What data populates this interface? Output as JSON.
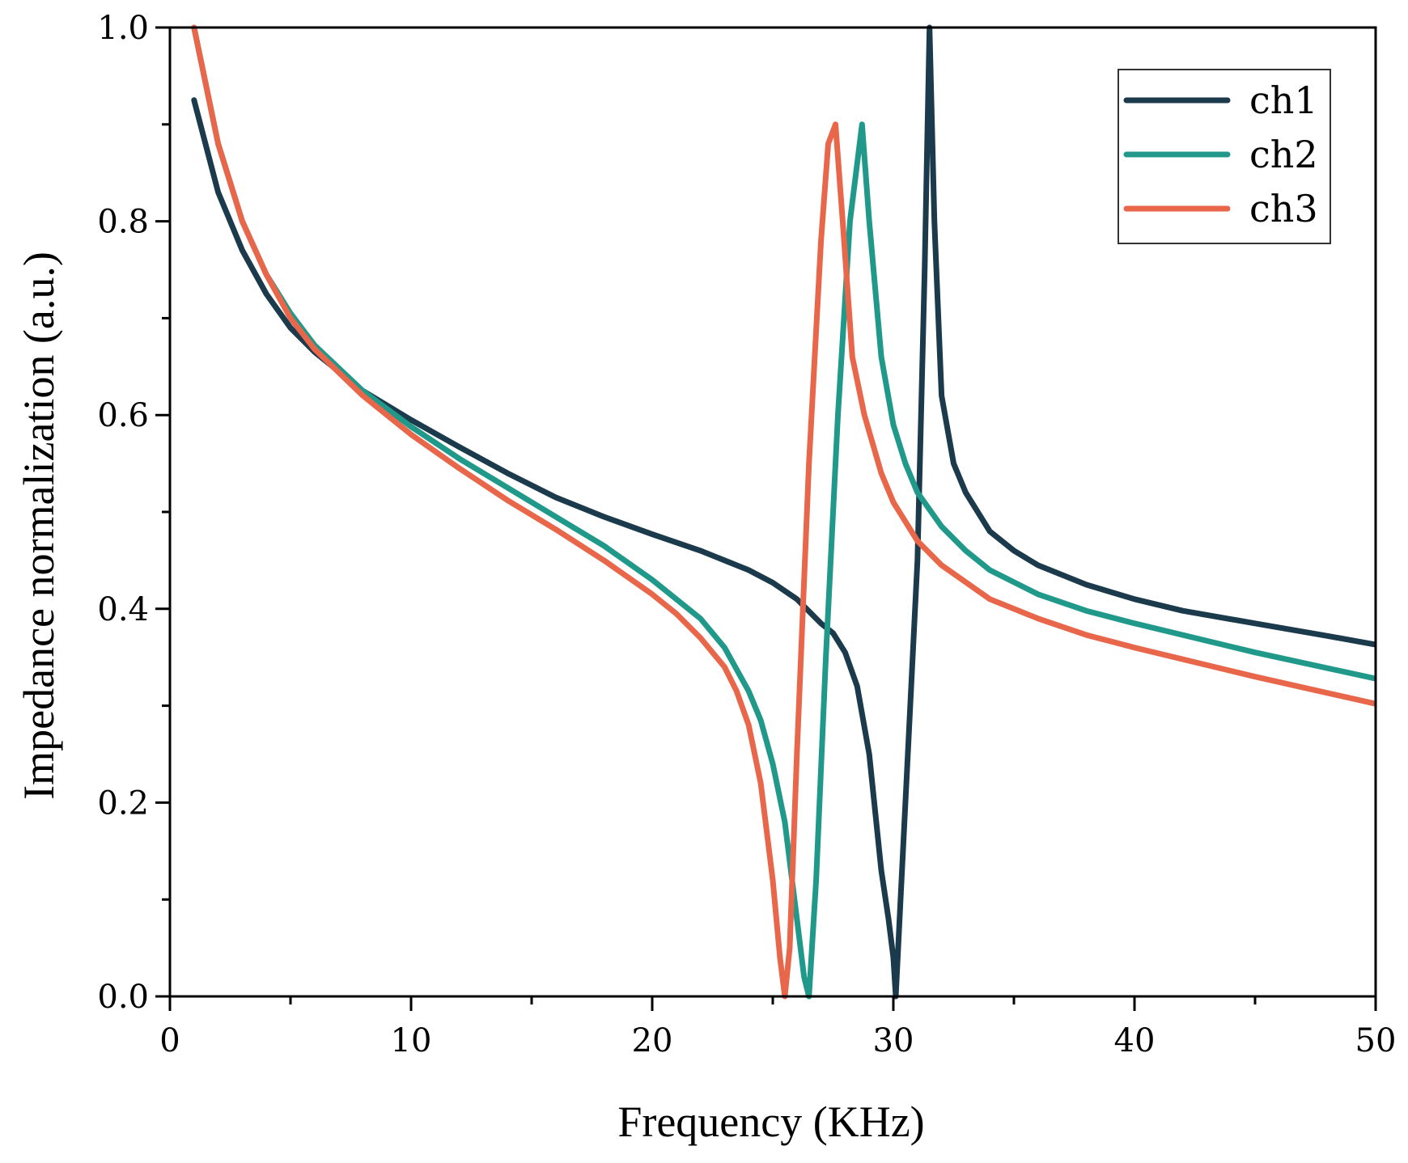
{
  "chart_data": {
    "type": "line",
    "title": "",
    "xlabel": "Frequency (KHz)",
    "ylabel": "Impedance normalization (a.u.)",
    "xlim": [
      0,
      50
    ],
    "ylim": [
      0,
      1.0
    ],
    "xticks": [
      0,
      10,
      20,
      30,
      40,
      50
    ],
    "xtick_labels": [
      "0",
      "10",
      "20",
      "30",
      "40",
      "50"
    ],
    "yticks": [
      0,
      0.2,
      0.4,
      0.6,
      0.8,
      1.0
    ],
    "ytick_labels": [
      "0.0",
      "0.2",
      "0.4",
      "0.6",
      "0.8",
      "1.0"
    ],
    "grid": false,
    "legend_position": "top-right",
    "series": [
      {
        "name": "ch1",
        "color": "#1b3a4b",
        "x": [
          1,
          2,
          3,
          4,
          5,
          6,
          8,
          10,
          12,
          14,
          16,
          18,
          20,
          22,
          24,
          25,
          26,
          27,
          27.5,
          28,
          28.5,
          29,
          29.5,
          29.8,
          30,
          30.1,
          30.3,
          30.6,
          31,
          31.3,
          31.5,
          31.7,
          32,
          32.5,
          33,
          34,
          35,
          36,
          38,
          40,
          42,
          45,
          48,
          50
        ],
        "y": [
          0.925,
          0.83,
          0.77,
          0.725,
          0.69,
          0.665,
          0.625,
          0.595,
          0.567,
          0.54,
          0.515,
          0.495,
          0.477,
          0.46,
          0.44,
          0.427,
          0.41,
          0.385,
          0.375,
          0.355,
          0.32,
          0.25,
          0.13,
          0.08,
          0.04,
          0.0,
          0.1,
          0.25,
          0.45,
          0.75,
          1.0,
          0.8,
          0.62,
          0.55,
          0.52,
          0.48,
          0.46,
          0.445,
          0.425,
          0.41,
          0.398,
          0.385,
          0.372,
          0.363
        ]
      },
      {
        "name": "ch2",
        "color": "#21998a",
        "x": [
          1,
          2,
          3,
          4,
          5,
          6,
          8,
          10,
          12,
          14,
          16,
          18,
          20,
          22,
          23,
          24,
          24.5,
          25,
          25.5,
          26,
          26.3,
          26.5,
          26.8,
          27.2,
          27.7,
          28.2,
          28.7,
          29,
          29.5,
          30,
          30.5,
          31,
          32,
          33,
          34,
          36,
          38,
          40,
          45,
          50
        ],
        "y": [
          1.0,
          0.88,
          0.8,
          0.745,
          0.705,
          0.672,
          0.625,
          0.588,
          0.555,
          0.525,
          0.495,
          0.465,
          0.43,
          0.39,
          0.36,
          0.315,
          0.285,
          0.24,
          0.18,
          0.08,
          0.02,
          0.0,
          0.12,
          0.35,
          0.6,
          0.8,
          0.9,
          0.8,
          0.66,
          0.59,
          0.55,
          0.52,
          0.485,
          0.46,
          0.44,
          0.415,
          0.398,
          0.385,
          0.355,
          0.328
        ]
      },
      {
        "name": "ch3",
        "color": "#e8664a",
        "x": [
          1,
          2,
          3,
          4,
          5,
          6,
          8,
          10,
          12,
          14,
          16,
          18,
          20,
          21,
          22,
          23,
          23.5,
          24,
          24.5,
          25,
          25.3,
          25.5,
          25.7,
          26,
          26.5,
          27,
          27.3,
          27.6,
          27.9,
          28.3,
          28.8,
          29.5,
          30,
          31,
          32,
          34,
          36,
          38,
          40,
          45,
          50
        ],
        "y": [
          1.0,
          0.88,
          0.8,
          0.745,
          0.7,
          0.668,
          0.62,
          0.58,
          0.545,
          0.512,
          0.482,
          0.45,
          0.415,
          0.395,
          0.37,
          0.34,
          0.315,
          0.28,
          0.22,
          0.12,
          0.04,
          0.0,
          0.05,
          0.25,
          0.55,
          0.78,
          0.88,
          0.9,
          0.8,
          0.66,
          0.6,
          0.54,
          0.51,
          0.47,
          0.445,
          0.41,
          0.39,
          0.373,
          0.36,
          0.33,
          0.302
        ]
      }
    ]
  }
}
